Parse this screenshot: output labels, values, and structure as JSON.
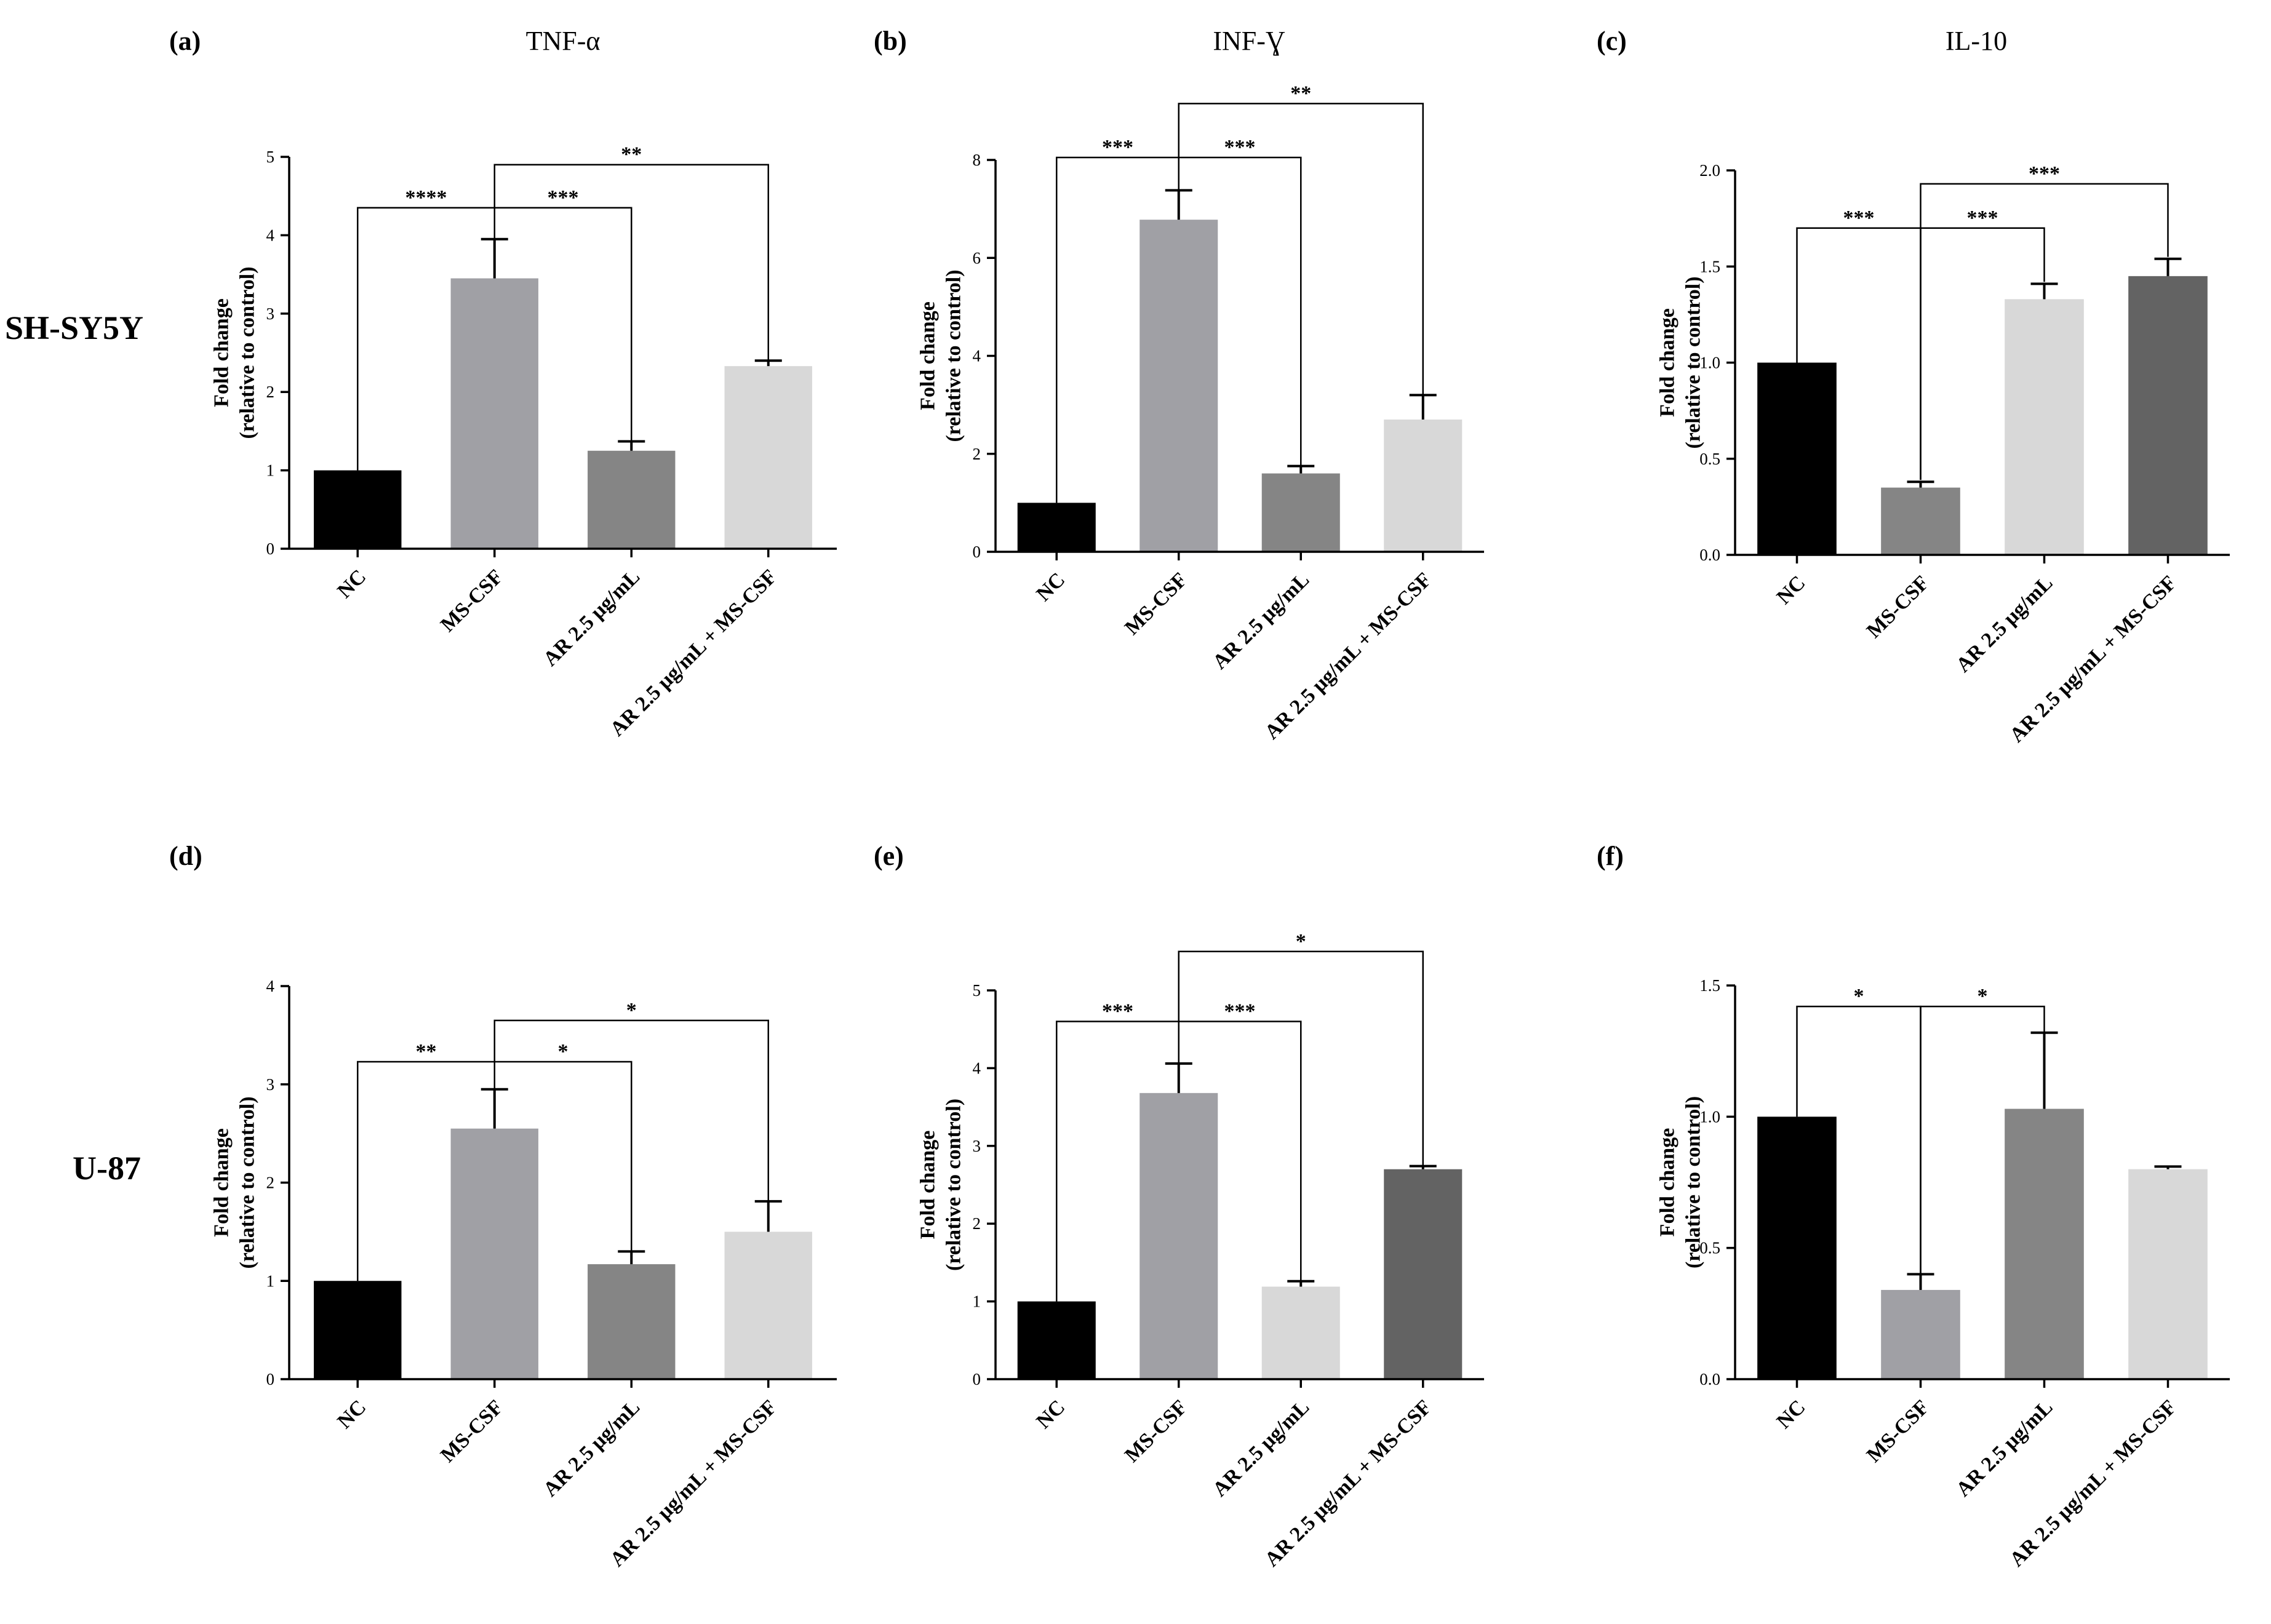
{
  "row_labels": [
    "SH-SY5Y",
    "U-87"
  ],
  "colors": {
    "black": "#000000",
    "medium_light_gray": "#a0a0a5",
    "medium_gray": "#858585",
    "light_gray": "#d8d8d8",
    "dark_gray": "#636363"
  },
  "chart_data": [
    {
      "panel": "(a)",
      "cell_line": "SH-SY5Y",
      "title": "TNF-α",
      "type": "bar",
      "ylabel_lines": [
        "Fold change",
        "(relative to control)"
      ],
      "categories": [
        "NC",
        "MS-CSF",
        "AR 2.5 μg/mL",
        "AR 2.5 μg/mL + MS-CSF"
      ],
      "values": [
        1.0,
        3.45,
        1.25,
        2.33
      ],
      "errors": [
        0.0,
        0.5,
        0.12,
        0.07
      ],
      "colors": [
        "#000000",
        "#a0a0a5",
        "#858585",
        "#d8d8d8"
      ],
      "ylim": [
        0,
        5
      ],
      "yticks": [
        "0",
        "1",
        "2",
        "3",
        "4",
        "5"
      ],
      "significance": [
        {
          "from": 0,
          "to": 1,
          "label": "****",
          "y": 4.35,
          "tick_from": 1.0,
          "tick_to": 3.95
        },
        {
          "from": 1,
          "to": 2,
          "label": "***",
          "y": 4.35,
          "tick_from": 3.95,
          "tick_to": 1.37
        },
        {
          "from": 1,
          "to": 3,
          "label": "**",
          "y": 4.9,
          "tick_from": 4.35,
          "tick_to": 2.4
        }
      ]
    },
    {
      "panel": "(b)",
      "cell_line": "SH-SY5Y",
      "title": "INF-Ɣ",
      "type": "bar",
      "ylabel_lines": [
        "Fold change",
        "(relative to control)"
      ],
      "categories": [
        "NC",
        "MS-CSF",
        "AR 2.5 μg/mL",
        "AR 2.5 μg/mL + MS-CSF"
      ],
      "values": [
        1.0,
        6.78,
        1.6,
        2.7
      ],
      "errors": [
        0.0,
        0.6,
        0.15,
        0.5
      ],
      "colors": [
        "#000000",
        "#a0a0a5",
        "#858585",
        "#d8d8d8"
      ],
      "ylim": [
        0,
        8
      ],
      "yticks": [
        "0",
        "2",
        "4",
        "6",
        "8"
      ],
      "significance": [
        {
          "from": 0,
          "to": 1,
          "label": "***",
          "y": 8.05,
          "tick_from": 1.0,
          "tick_to": 7.4
        },
        {
          "from": 1,
          "to": 2,
          "label": "***",
          "y": 8.05,
          "tick_from": 7.4,
          "tick_to": 1.77
        },
        {
          "from": 1,
          "to": 3,
          "label": "**",
          "y": 9.15,
          "tick_from": 8.05,
          "tick_to": 3.22
        }
      ]
    },
    {
      "panel": "(c)",
      "cell_line": "SH-SY5Y",
      "title": "IL-10",
      "type": "bar",
      "ylabel_lines": [
        "Fold change",
        "(relative to control)"
      ],
      "categories": [
        "NC",
        "MS-CSF",
        "AR 2.5 μg/mL",
        "AR 2.5 μg/mL + MS-CSF"
      ],
      "values": [
        1.0,
        0.35,
        1.33,
        1.45
      ],
      "errors": [
        0.0,
        0.03,
        0.08,
        0.09
      ],
      "colors": [
        "#000000",
        "#858585",
        "#d8d8d8",
        "#636363"
      ],
      "ylim": [
        0,
        2.0
      ],
      "yticks": [
        "0.0",
        "0.5",
        "1.0",
        "1.5",
        "2.0"
      ],
      "significance": [
        {
          "from": 0,
          "to": 1,
          "label": "***",
          "y": 1.7,
          "tick_from": 1.0,
          "tick_to": 0.39
        },
        {
          "from": 1,
          "to": 2,
          "label": "***",
          "y": 1.7,
          "tick_from": 0.39,
          "tick_to": 1.42
        },
        {
          "from": 1,
          "to": 3,
          "label": "***",
          "y": 1.93,
          "tick_from": 1.7,
          "tick_to": 1.55
        }
      ]
    },
    {
      "panel": "(d)",
      "cell_line": "U-87",
      "title": "",
      "type": "bar",
      "ylabel_lines": [
        "Fold change",
        "(relative to control)"
      ],
      "categories": [
        "NC",
        "MS-CSF",
        "AR 2.5 μg/mL",
        "AR 2.5 μg/mL + MS-CSF"
      ],
      "values": [
        1.0,
        2.55,
        1.17,
        1.5
      ],
      "errors": [
        0.0,
        0.4,
        0.13,
        0.31
      ],
      "colors": [
        "#000000",
        "#a0a0a5",
        "#858585",
        "#d8d8d8"
      ],
      "ylim": [
        0,
        4
      ],
      "yticks": [
        "0",
        "1",
        "2",
        "3",
        "4"
      ],
      "significance": [
        {
          "from": 0,
          "to": 1,
          "label": "**",
          "y": 3.23,
          "tick_from": 1.0,
          "tick_to": 2.95
        },
        {
          "from": 1,
          "to": 2,
          "label": "*",
          "y": 3.23,
          "tick_from": 2.95,
          "tick_to": 1.31
        },
        {
          "from": 1,
          "to": 3,
          "label": "*",
          "y": 3.65,
          "tick_from": 3.23,
          "tick_to": 1.82
        }
      ]
    },
    {
      "panel": "(e)",
      "cell_line": "U-87",
      "title": "",
      "type": "bar",
      "ylabel_lines": [
        "Fold change",
        "(relative to control)"
      ],
      "categories": [
        "NC",
        "MS-CSF",
        "AR 2.5 μg/mL",
        "AR 2.5 μg/mL + MS-CSF"
      ],
      "values": [
        1.0,
        3.68,
        1.19,
        2.7
      ],
      "errors": [
        0.0,
        0.38,
        0.07,
        0.04
      ],
      "colors": [
        "#000000",
        "#a0a0a5",
        "#d8d8d8",
        "#636363"
      ],
      "ylim": [
        0,
        5
      ],
      "yticks": [
        "0",
        "1",
        "2",
        "3",
        "4",
        "5"
      ],
      "significance": [
        {
          "from": 0,
          "to": 1,
          "label": "***",
          "y": 4.6,
          "tick_from": 1.0,
          "tick_to": 4.06
        },
        {
          "from": 1,
          "to": 2,
          "label": "***",
          "y": 4.6,
          "tick_from": 4.06,
          "tick_to": 1.27
        },
        {
          "from": 1,
          "to": 3,
          "label": "*",
          "y": 5.5,
          "tick_from": 4.6,
          "tick_to": 2.75
        }
      ]
    },
    {
      "panel": "(f)",
      "cell_line": "U-87",
      "title": "",
      "type": "bar",
      "ylabel_lines": [
        "Fold change",
        "(relative to control)"
      ],
      "categories": [
        "NC",
        "MS-CSF",
        "AR 2.5 μg/mL",
        "AR 2.5 μg/mL + MS-CSF"
      ],
      "values": [
        1.0,
        0.34,
        1.03,
        0.8
      ],
      "errors": [
        0.0,
        0.06,
        0.29,
        0.01
      ],
      "colors": [
        "#000000",
        "#a0a0a5",
        "#858585",
        "#d8d8d8"
      ],
      "ylim": [
        0,
        1.5
      ],
      "yticks": [
        "0.0",
        "0.5",
        "1.0",
        "1.5"
      ],
      "significance": [
        {
          "from": 0,
          "to": 1,
          "label": "*",
          "y": 1.42,
          "tick_from": 1.0,
          "tick_to": 0.4
        },
        {
          "from": 1,
          "to": 2,
          "label": "*",
          "y": 1.42,
          "tick_from": 0.4,
          "tick_to": 1.32
        }
      ]
    }
  ]
}
